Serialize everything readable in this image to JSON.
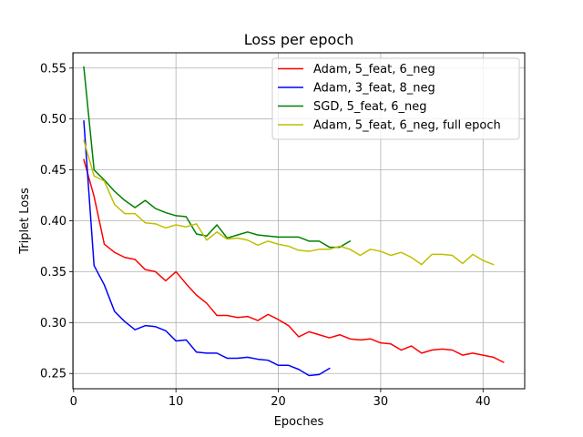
{
  "chart_data": {
    "type": "line",
    "title": "Loss per epoch",
    "xlabel": "Epoches",
    "ylabel": "Triplet Loss",
    "xlim": [
      -0.07,
      44.07
    ],
    "ylim": [
      0.235,
      0.565
    ],
    "xticks": [
      0,
      10,
      20,
      30,
      40
    ],
    "yticks": [
      0.25,
      0.3,
      0.35,
      0.4,
      0.45,
      0.5,
      0.55
    ],
    "grid": true,
    "legend_position": "upper right",
    "series": [
      {
        "name": "Adam, 5_feat, 6_neg",
        "color": "#ff0000",
        "x": [
          1,
          2,
          3,
          4,
          5,
          6,
          7,
          8,
          9,
          10,
          11,
          12,
          13,
          14,
          15,
          16,
          17,
          18,
          19,
          20,
          21,
          22,
          23,
          24,
          25,
          26,
          27,
          28,
          29,
          30,
          31,
          32,
          33,
          34,
          35,
          36,
          37,
          38,
          39,
          40,
          41,
          42
        ],
        "y": [
          0.46,
          0.424,
          0.377,
          0.369,
          0.364,
          0.362,
          0.352,
          0.35,
          0.341,
          0.35,
          0.338,
          0.327,
          0.319,
          0.307,
          0.307,
          0.305,
          0.306,
          0.302,
          0.308,
          0.303,
          0.297,
          0.286,
          0.291,
          0.288,
          0.285,
          0.288,
          0.284,
          0.283,
          0.284,
          0.28,
          0.279,
          0.273,
          0.277,
          0.27,
          0.273,
          0.274,
          0.273,
          0.268,
          0.27,
          0.268,
          0.266,
          0.261
        ]
      },
      {
        "name": "Adam, 3_feat, 8_neg",
        "color": "#0000ff",
        "x": [
          1,
          2,
          3,
          4,
          5,
          6,
          7,
          8,
          9,
          10,
          11,
          12,
          13,
          14,
          15,
          16,
          17,
          18,
          19,
          20,
          21,
          22,
          23,
          24,
          25
        ],
        "y": [
          0.498,
          0.356,
          0.337,
          0.311,
          0.301,
          0.293,
          0.297,
          0.296,
          0.292,
          0.282,
          0.283,
          0.271,
          0.27,
          0.27,
          0.265,
          0.265,
          0.266,
          0.264,
          0.263,
          0.258,
          0.258,
          0.254,
          0.248,
          0.249,
          0.255
        ]
      },
      {
        "name": "SGD, 5_feat, 6_neg",
        "color": "#008000",
        "x": [
          1,
          2,
          3,
          4,
          5,
          6,
          7,
          8,
          9,
          10,
          11,
          12,
          13,
          14,
          15,
          16,
          17,
          18,
          19,
          20,
          21,
          22,
          23,
          24,
          25,
          26,
          27
        ],
        "y": [
          0.551,
          0.45,
          0.44,
          0.429,
          0.42,
          0.413,
          0.42,
          0.412,
          0.408,
          0.405,
          0.404,
          0.387,
          0.385,
          0.396,
          0.383,
          0.386,
          0.389,
          0.386,
          0.385,
          0.384,
          0.384,
          0.384,
          0.38,
          0.38,
          0.374,
          0.374,
          0.38
        ]
      },
      {
        "name": "Adam, 5_feat, 6_neg, full epoch",
        "color": "#bfbf00",
        "x": [
          1,
          2,
          3,
          4,
          5,
          6,
          7,
          8,
          9,
          10,
          11,
          12,
          13,
          14,
          15,
          16,
          17,
          18,
          19,
          20,
          21,
          22,
          23,
          24,
          25,
          26,
          27,
          28,
          29,
          30,
          31,
          32,
          33,
          34,
          35,
          36,
          37,
          38,
          39,
          40,
          41
        ],
        "y": [
          0.479,
          0.444,
          0.439,
          0.416,
          0.407,
          0.407,
          0.398,
          0.397,
          0.393,
          0.396,
          0.394,
          0.397,
          0.381,
          0.389,
          0.382,
          0.383,
          0.381,
          0.376,
          0.38,
          0.377,
          0.375,
          0.371,
          0.37,
          0.372,
          0.372,
          0.375,
          0.372,
          0.366,
          0.372,
          0.37,
          0.366,
          0.369,
          0.364,
          0.357,
          0.367,
          0.367,
          0.366,
          0.358,
          0.367,
          0.361,
          0.357
        ]
      }
    ]
  }
}
